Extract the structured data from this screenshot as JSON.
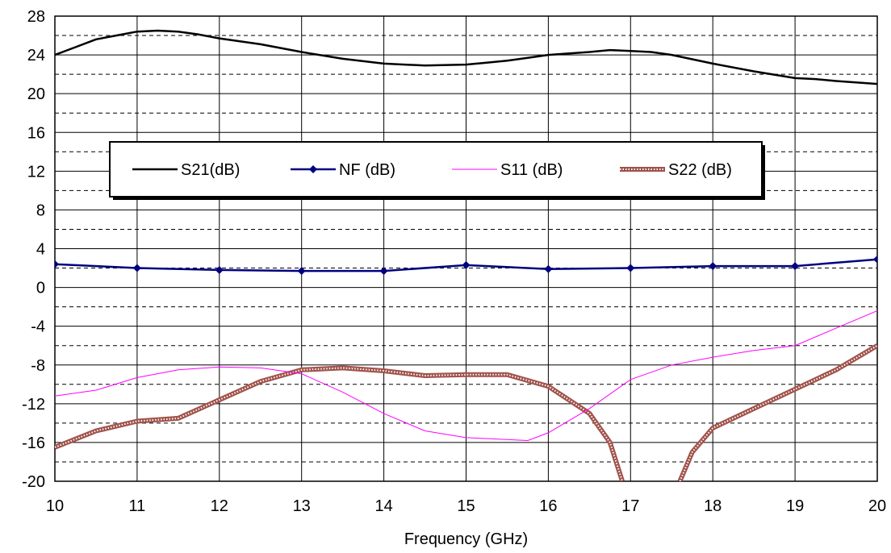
{
  "chart_data": {
    "type": "line",
    "xlabel": "Frequency (GHz)",
    "ylabel": "",
    "xlim": [
      10,
      20
    ],
    "ylim": [
      -20,
      28
    ],
    "x_ticks": [
      "10",
      "11",
      "12",
      "13",
      "14",
      "15",
      "16",
      "17",
      "18",
      "19",
      "20"
    ],
    "y_ticks": [
      "28",
      "24",
      "20",
      "16",
      "12",
      "8",
      "4",
      "0",
      "-4",
      "-8",
      "-12",
      "-16",
      "-20"
    ],
    "grid": {
      "major_solid": true,
      "minor_dashed": true
    },
    "legend_position": "inside-center-upper",
    "series": [
      {
        "name": "S21(dB)",
        "color": "#000000",
        "style": "thick-line",
        "points": [
          [
            10,
            24.0
          ],
          [
            10.25,
            24.8
          ],
          [
            10.5,
            25.6
          ],
          [
            10.75,
            26.0
          ],
          [
            11,
            26.4
          ],
          [
            11.25,
            26.5
          ],
          [
            11.5,
            26.4
          ],
          [
            11.75,
            26.1
          ],
          [
            12,
            25.7
          ],
          [
            12.5,
            25.1
          ],
          [
            13,
            24.3
          ],
          [
            13.5,
            23.6
          ],
          [
            14,
            23.1
          ],
          [
            14.5,
            22.9
          ],
          [
            15,
            23.0
          ],
          [
            15.25,
            23.2
          ],
          [
            15.5,
            23.4
          ],
          [
            15.75,
            23.7
          ],
          [
            16,
            24.0
          ],
          [
            16.5,
            24.3
          ],
          [
            16.75,
            24.5
          ],
          [
            17,
            24.4
          ],
          [
            17.25,
            24.3
          ],
          [
            17.5,
            24.0
          ],
          [
            18,
            23.1
          ],
          [
            18.5,
            22.3
          ],
          [
            19,
            21.6
          ],
          [
            19.25,
            21.5
          ],
          [
            19.5,
            21.3
          ],
          [
            20,
            21.0
          ]
        ]
      },
      {
        "name": "NF (dB)",
        "color": "#000080",
        "style": "line-diamond",
        "points": [
          [
            10,
            2.4
          ],
          [
            11,
            2.0
          ],
          [
            12,
            1.8
          ],
          [
            13,
            1.7
          ],
          [
            14,
            1.7
          ],
          [
            15,
            2.3
          ],
          [
            16,
            1.9
          ],
          [
            17,
            2.0
          ],
          [
            18,
            2.2
          ],
          [
            19,
            2.2
          ],
          [
            20,
            2.9
          ]
        ]
      },
      {
        "name": "S11 (dB)",
        "color": "#ff00ff",
        "style": "thin-line",
        "points": [
          [
            10,
            -11.2
          ],
          [
            10.5,
            -10.6
          ],
          [
            11,
            -9.3
          ],
          [
            11.5,
            -8.5
          ],
          [
            12,
            -8.2
          ],
          [
            12.5,
            -8.3
          ],
          [
            13,
            -8.9
          ],
          [
            13.5,
            -10.8
          ],
          [
            14,
            -13.0
          ],
          [
            14.5,
            -14.8
          ],
          [
            15,
            -15.5
          ],
          [
            15.5,
            -15.7
          ],
          [
            15.75,
            -15.8
          ],
          [
            16,
            -15.0
          ],
          [
            16.5,
            -12.5
          ],
          [
            17,
            -9.5
          ],
          [
            17.5,
            -8.0
          ],
          [
            18,
            -7.2
          ],
          [
            18.5,
            -6.5
          ],
          [
            19,
            -6.0
          ],
          [
            19.5,
            -4.2
          ],
          [
            20,
            -2.4
          ]
        ]
      },
      {
        "name": "S22 (dB)",
        "color": "#a0524a",
        "style": "thick-textured-line",
        "points": [
          [
            10,
            -16.5
          ],
          [
            10.5,
            -14.8
          ],
          [
            11,
            -13.8
          ],
          [
            11.5,
            -13.5
          ],
          [
            12,
            -11.6
          ],
          [
            12.5,
            -9.7
          ],
          [
            13,
            -8.5
          ],
          [
            13.5,
            -8.3
          ],
          [
            14,
            -8.6
          ],
          [
            14.5,
            -9.1
          ],
          [
            15,
            -9.0
          ],
          [
            15.5,
            -9.0
          ],
          [
            16,
            -10.2
          ],
          [
            16.5,
            -13.0
          ],
          [
            16.75,
            -16.0
          ],
          [
            16.9,
            -20.0
          ]
        ]
      },
      {
        "name": "S22 (dB)",
        "color": "#a0524a",
        "style": "thick-textured-line",
        "points": [
          [
            17.6,
            -20.0
          ],
          [
            17.75,
            -17.0
          ],
          [
            18,
            -14.5
          ],
          [
            18.5,
            -12.5
          ],
          [
            19,
            -10.5
          ],
          [
            19.5,
            -8.5
          ],
          [
            20,
            -6.0
          ]
        ]
      }
    ]
  }
}
